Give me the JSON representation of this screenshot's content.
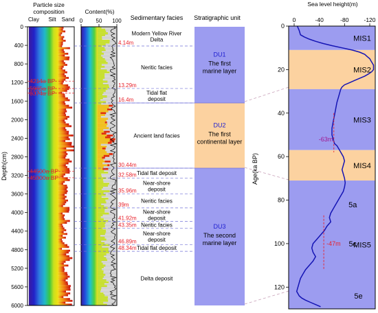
{
  "chart_data": [
    {
      "type": "strip_log",
      "title": "Particle size composition",
      "column_labels": [
        "Clay",
        "Silt",
        "Sand"
      ],
      "ylabel": "Depth(cm)",
      "yticks": [
        0,
        400,
        800,
        1200,
        1600,
        2000,
        2400,
        2800,
        3200,
        3600,
        4000,
        4400,
        4800,
        5200,
        5600,
        6000
      ],
      "ylim": [
        0,
        6000
      ],
      "dates": [
        {
          "label": "4214a BP",
          "depth": 1170
        },
        {
          "label": "5965a BP",
          "depth": 1330
        },
        {
          "label": "6374a BP",
          "depth": 1430
        },
        {
          "label": "44500a BP",
          "depth": 3110
        },
        {
          "label": "45000a BP",
          "depth": 3250
        }
      ]
    },
    {
      "type": "area",
      "title": "Content(%)",
      "xticks": [
        0,
        50,
        100
      ],
      "xlim": [
        0,
        100
      ]
    },
    {
      "type": "table",
      "title": "Sedimentary facies",
      "boundaries": [
        {
          "label": "4.14m",
          "depth": 414
        },
        {
          "label": "13.29m",
          "depth": 1329
        },
        {
          "label": "16.4m",
          "depth": 1640
        },
        {
          "label": "30.44m",
          "depth": 3044
        },
        {
          "label": "32.58m",
          "depth": 3258
        },
        {
          "label": "35.96m",
          "depth": 3596
        },
        {
          "label": "39m",
          "depth": 3900
        },
        {
          "label": "41.92m",
          "depth": 4192
        },
        {
          "label": "43.35m",
          "depth": 4335
        },
        {
          "label": "46.89m",
          "depth": 4689
        },
        {
          "label": "48.34m",
          "depth": 4834
        }
      ],
      "facies": [
        {
          "lines": [
            "Modern Yellow River",
            "Delta"
          ],
          "top": 0,
          "bottom": 414
        },
        {
          "lines": [
            "Neritic facies"
          ],
          "top": 414,
          "bottom": 1329
        },
        {
          "lines": [
            "Tidal flat",
            "deposit"
          ],
          "top": 1329,
          "bottom": 1640
        },
        {
          "lines": [
            "Ancient land facies"
          ],
          "top": 1640,
          "bottom": 3044
        },
        {
          "lines": [
            "Tidal flat deposit"
          ],
          "top": 3044,
          "bottom": 3258
        },
        {
          "lines": [
            "Near-shore",
            "deposit"
          ],
          "top": 3258,
          "bottom": 3596
        },
        {
          "lines": [
            "Neritic facies"
          ],
          "top": 3596,
          "bottom": 3900
        },
        {
          "lines": [
            "Near-shore",
            "deposit"
          ],
          "top": 3900,
          "bottom": 4192
        },
        {
          "lines": [
            "Neritic facies"
          ],
          "top": 4192,
          "bottom": 4335
        },
        {
          "lines": [
            "Near-shore",
            "deposit"
          ],
          "top": 4335,
          "bottom": 4689
        },
        {
          "lines": [
            "Tidal flat deposit"
          ],
          "top": 4689,
          "bottom": 4834
        },
        {
          "lines": [
            "Delta deposit"
          ],
          "top": 4834,
          "bottom": 6000
        }
      ]
    },
    {
      "type": "table",
      "title": "Stratigraphic unit",
      "units": [
        {
          "code": "DU1",
          "lines": [
            "The first",
            "marine layer"
          ],
          "top": 0,
          "bottom": 1640,
          "color": "#9c9cf0"
        },
        {
          "code": "DU2",
          "lines": [
            "The first",
            "continental layer"
          ],
          "top": 1640,
          "bottom": 3044,
          "color": "#fcd2a0"
        },
        {
          "code": "DU3",
          "lines": [
            "The second",
            "marine layer"
          ],
          "top": 3044,
          "bottom": 6000,
          "color": "#9c9cf0"
        }
      ]
    },
    {
      "type": "line",
      "title": "Sea level height(m)",
      "xticks": [
        0,
        -40,
        -80,
        -120
      ],
      "xlim": [
        0,
        -120
      ],
      "ylabel": "Age(ka BP)",
      "yticks": [
        0,
        20,
        40,
        60,
        80,
        100,
        120
      ],
      "ylim": [
        0,
        130
      ],
      "x": [
        -5,
        -8,
        -10,
        -16,
        -24,
        -34,
        -46,
        -60,
        -76,
        -92,
        -104,
        -112,
        -116,
        -120,
        -122,
        -124,
        -126,
        -126,
        -123,
        -118,
        -112,
        -104,
        -96,
        -88,
        -80,
        -76,
        -74,
        -73,
        -72,
        -70,
        -68,
        -66,
        -64,
        -62,
        -60,
        -60,
        -62,
        -64,
        -68,
        -72,
        -78,
        -80,
        -78,
        -76,
        -78,
        -80,
        -81,
        -80,
        -78,
        -74,
        -70,
        -64,
        -58,
        -56,
        -58,
        -52,
        -48,
        -42,
        -36,
        -30,
        -28,
        -30,
        -34,
        -30,
        -24,
        -18,
        -14,
        -10,
        -8,
        -6,
        -4,
        -6,
        -8,
        -12,
        -18,
        -26,
        -34,
        -42
      ],
      "y": [
        0,
        2,
        4,
        5,
        6,
        7,
        8,
        9,
        10,
        11,
        12,
        13,
        14,
        15,
        16,
        17,
        18,
        20,
        21,
        22,
        23,
        24,
        25,
        26,
        27,
        28,
        29,
        30,
        31,
        33,
        35,
        38,
        41,
        44,
        47,
        50,
        52,
        54,
        55,
        57,
        60,
        62,
        64,
        66,
        68,
        70,
        72,
        74,
        76,
        78,
        80,
        83,
        86,
        88,
        90,
        92,
        94,
        96,
        98,
        100,
        102,
        104,
        106,
        108,
        110,
        112,
        114,
        116,
        118,
        120,
        122,
        123,
        124,
        125,
        126,
        127,
        128,
        129
      ],
      "stages": [
        {
          "label": "MIS1",
          "top": 0,
          "bottom": 11,
          "color": "#9c9cf0"
        },
        {
          "label": "MIS2",
          "top": 11,
          "bottom": 29,
          "color": "#fcd2a0"
        },
        {
          "label": "MIS3",
          "top": 29,
          "bottom": 57,
          "color": "#9c9cf0"
        },
        {
          "label": "MIS4",
          "top": 57,
          "bottom": 71,
          "color": "#fcd2a0"
        },
        {
          "label": "MIS5",
          "top": 71,
          "bottom": 130,
          "color": "#9c9cf0"
        }
      ],
      "annotations": [
        {
          "label": "-63m",
          "x": -63,
          "y_top": 40,
          "y_bottom": 58
        },
        {
          "label": "-47m",
          "x": -47,
          "y_top": 87,
          "y_bottom": 112
        }
      ],
      "substage_labels": [
        {
          "label": "5a",
          "x": -93,
          "y": 82
        },
        {
          "label": "5c",
          "x": -93,
          "y": 100
        },
        {
          "label": "5e",
          "x": -102,
          "y": 124
        }
      ]
    }
  ],
  "colors": {
    "marine": "#9c9cf0",
    "continental": "#fcd2a0",
    "annotation_red": "#e8202a",
    "annotation_magenta": "#a0158f",
    "curve": "#1414b4",
    "unit_code": "#2020d0",
    "dash_line": "#7070d8",
    "connector": "#c8a0b8"
  }
}
